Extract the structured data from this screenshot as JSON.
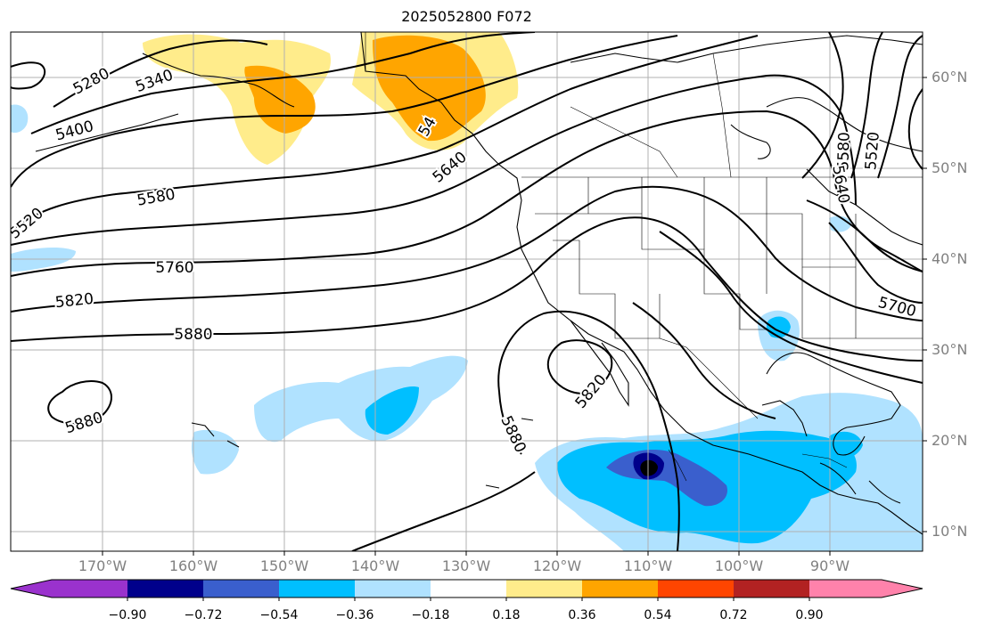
{
  "title": "2025052800 F072",
  "lat_labels": [
    "60°N",
    "50°N",
    "40°N",
    "30°N",
    "20°N",
    "10°N"
  ],
  "lon_labels": [
    "170°W",
    "160°W",
    "150°W",
    "140°W",
    "130°W",
    "120°W",
    "110°W",
    "100°W",
    "90°W"
  ],
  "contour_labels": [
    "5280",
    "5340",
    "5400",
    "5520",
    "5580",
    "5640",
    "5760",
    "5820",
    "5880",
    "5880",
    "5820",
    "5880",
    "5580",
    "5520",
    "5640",
    "5700",
    "54"
  ],
  "colorbar": {
    "colors": [
      "#9a32cd",
      "#00008b",
      "#3a5fcd",
      "#00bfff",
      "#b0e2ff",
      "#ffffff",
      "#ffec8b",
      "#ffa500",
      "#ff4500",
      "#b22222",
      "#ff82ab"
    ],
    "tick_labels": [
      "−0.90",
      "−0.72",
      "−0.54",
      "−0.36",
      "−0.18",
      "0.18",
      "0.36",
      "0.54",
      "0.72",
      "0.90"
    ]
  },
  "colors": {
    "grid": "#b0b0b0",
    "contour": "#000000",
    "coast": "#000000",
    "tick_label": "#808080"
  }
}
